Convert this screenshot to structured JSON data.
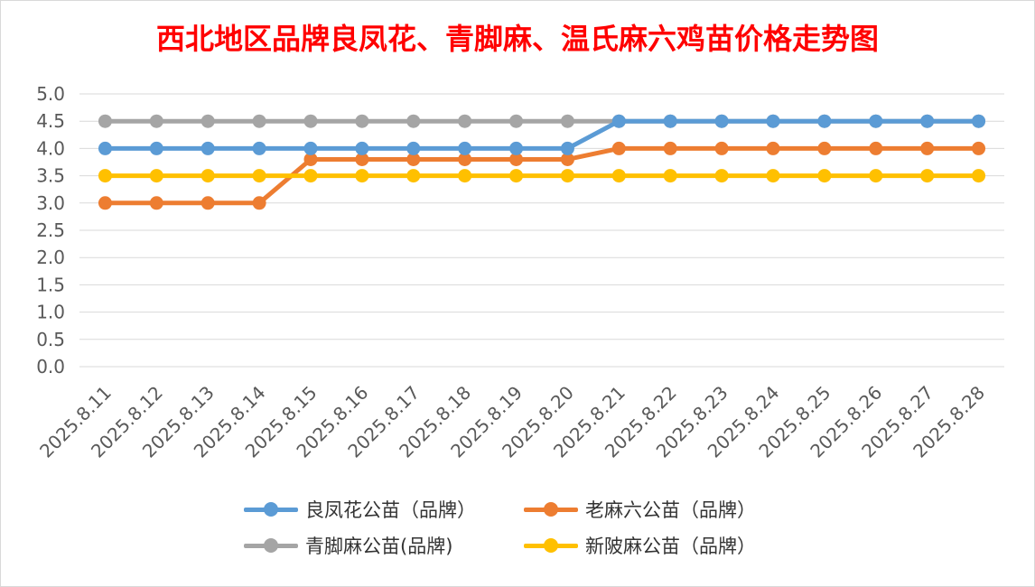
{
  "chart_data": {
    "type": "line",
    "title": "西北地区品牌良凤花、青脚麻、温氏麻六鸡苗价格走势图",
    "categories": [
      "2025.8.11",
      "2025.8.12",
      "2025.8.13",
      "2025.8.14",
      "2025.8.15",
      "2025.8.16",
      "2025.8.17",
      "2025.8.18",
      "2025.8.19",
      "2025.8.20",
      "2025.8.21",
      "2025.8.22",
      "2025.8.23",
      "2025.8.24",
      "2025.8.25",
      "2025.8.26",
      "2025.8.27",
      "2025.8.28"
    ],
    "ylim": [
      0,
      5.0
    ],
    "yticks": [
      "0.0",
      "0.5",
      "1.0",
      "1.5",
      "2.0",
      "2.5",
      "3.0",
      "3.5",
      "4.0",
      "4.5",
      "5.0"
    ],
    "grid": true,
    "legend_position": "bottom",
    "series": [
      {
        "name": "良凤花公苗（品牌）",
        "color": "#5b9bd5",
        "values": [
          4.0,
          4.0,
          4.0,
          4.0,
          4.0,
          4.0,
          4.0,
          4.0,
          4.0,
          4.0,
          4.5,
          4.5,
          4.5,
          4.5,
          4.5,
          4.5,
          4.5,
          4.5
        ]
      },
      {
        "name": "老麻六公苗（品牌）",
        "color": "#ed7d31",
        "values": [
          3.0,
          3.0,
          3.0,
          3.0,
          3.8,
          3.8,
          3.8,
          3.8,
          3.8,
          3.8,
          4.0,
          4.0,
          4.0,
          4.0,
          4.0,
          4.0,
          4.0,
          4.0
        ]
      },
      {
        "name": "青脚麻公苗(品牌)",
        "color": "#a5a5a5",
        "values": [
          4.5,
          4.5,
          4.5,
          4.5,
          4.5,
          4.5,
          4.5,
          4.5,
          4.5,
          4.5,
          4.5,
          4.5,
          4.5,
          4.5,
          4.5,
          4.5,
          4.5,
          4.5
        ]
      },
      {
        "name": "新陂麻公苗（品牌）",
        "color": "#ffc000",
        "values": [
          3.5,
          3.5,
          3.5,
          3.5,
          3.5,
          3.5,
          3.5,
          3.5,
          3.5,
          3.5,
          3.5,
          3.5,
          3.5,
          3.5,
          3.5,
          3.5,
          3.5,
          3.5
        ]
      }
    ]
  }
}
